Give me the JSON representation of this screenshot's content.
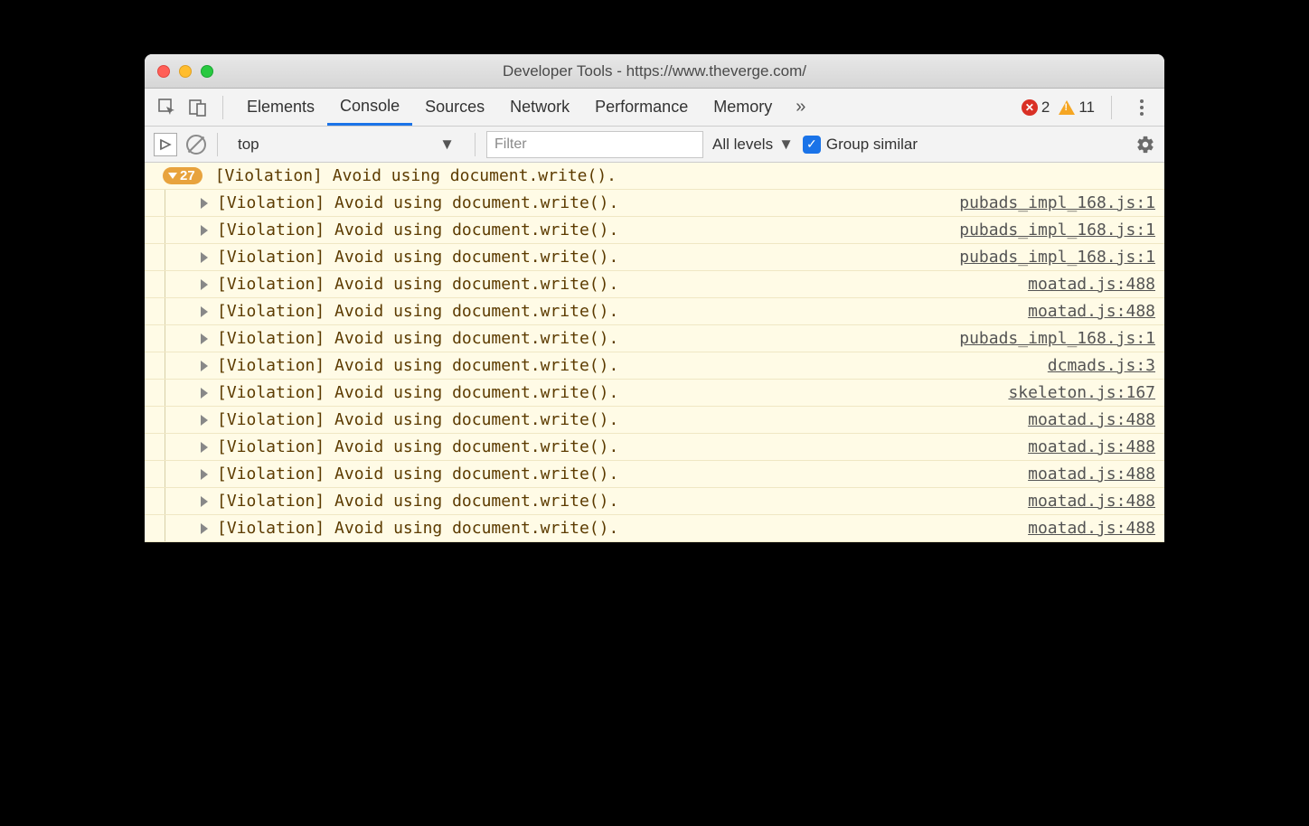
{
  "window": {
    "title": "Developer Tools - https://www.theverge.com/",
    "traffic_colors": {
      "close": "#ff5f57",
      "min": "#ffbd2e",
      "max": "#28c940"
    }
  },
  "tabs": {
    "items": [
      "Elements",
      "Console",
      "Sources",
      "Network",
      "Performance",
      "Memory"
    ],
    "active_index": 1,
    "overflow_glyph": "»"
  },
  "badges": {
    "errors": 2,
    "warnings": 11
  },
  "console_toolbar": {
    "context": "top",
    "filter_placeholder": "Filter",
    "levels_label": "All levels",
    "group_similar_checked": true,
    "group_similar_label": "Group similar"
  },
  "group": {
    "count": 27,
    "header_text": "[Violation] Avoid using document.write()."
  },
  "entries": [
    {
      "text": "[Violation] Avoid using document.write().",
      "source": "pubads_impl_168.js:1"
    },
    {
      "text": "[Violation] Avoid using document.write().",
      "source": "pubads_impl_168.js:1"
    },
    {
      "text": "[Violation] Avoid using document.write().",
      "source": "pubads_impl_168.js:1"
    },
    {
      "text": "[Violation] Avoid using document.write().",
      "source": "moatad.js:488"
    },
    {
      "text": "[Violation] Avoid using document.write().",
      "source": "moatad.js:488"
    },
    {
      "text": "[Violation] Avoid using document.write().",
      "source": "pubads_impl_168.js:1"
    },
    {
      "text": "[Violation] Avoid using document.write().",
      "source": "dcmads.js:3"
    },
    {
      "text": "[Violation] Avoid using document.write().",
      "source": "skeleton.js:167"
    },
    {
      "text": "[Violation] Avoid using document.write().",
      "source": "moatad.js:488"
    },
    {
      "text": "[Violation] Avoid using document.write().",
      "source": "moatad.js:488"
    },
    {
      "text": "[Violation] Avoid using document.write().",
      "source": "moatad.js:488"
    },
    {
      "text": "[Violation] Avoid using document.write().",
      "source": "moatad.js:488"
    },
    {
      "text": "[Violation] Avoid using document.write().",
      "source": "moatad.js:488"
    }
  ],
  "colors": {
    "accent": "#1a73e8",
    "warn_bg": "#fffbe6",
    "warn_text": "#5c3b00",
    "badge_bg": "#e8a33d",
    "error_icon": "#d93025",
    "warn_icon": "#f5a623"
  }
}
